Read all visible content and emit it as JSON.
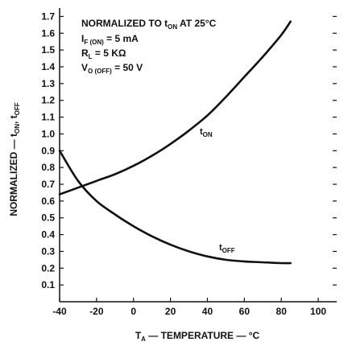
{
  "chart_data": {
    "type": "line",
    "xlabel": {
      "main": "T",
      "sub": "A",
      "rest": " — TEMPERATURE — °C"
    },
    "ylabel": {
      "p1": "NORMALIZED — t",
      "s1": "ON",
      "p2": ", t",
      "s2": "OFF"
    },
    "xlim": [
      -40,
      110
    ],
    "ylim": [
      0,
      1.75
    ],
    "x_ticks": [
      "-40",
      "-20",
      "0",
      "20",
      "40",
      "60",
      "80",
      "100"
    ],
    "y_ticks": [
      "0.1",
      "0.2",
      "0.3",
      "0.4",
      "0.5",
      "0.6",
      "0.7",
      "0.8",
      "0.9",
      "1.0",
      "1.1",
      "1.2",
      "1.3",
      "1.4",
      "1.5",
      "1.6",
      "1.7"
    ],
    "annotations": [
      {
        "parts": [
          {
            "t": "NORMALIZED TO t"
          },
          {
            "t": "ON",
            "sub": true
          },
          {
            "t": " AT 25°C"
          }
        ]
      },
      {
        "parts": [
          {
            "t": "I"
          },
          {
            "t": "F (ON)",
            "sub": true
          },
          {
            "t": " = 5 mA"
          }
        ]
      },
      {
        "parts": [
          {
            "t": "R"
          },
          {
            "t": "L",
            "sub": true
          },
          {
            "t": " = 5 KΩ"
          }
        ]
      },
      {
        "parts": [
          {
            "t": "V"
          },
          {
            "t": "O (OFF)",
            "sub": true
          },
          {
            "t": " = 50 V"
          }
        ]
      }
    ],
    "series": [
      {
        "label_main": "t",
        "label_sub": "ON",
        "x": [
          -40,
          -30,
          -20,
          -10,
          0,
          10,
          20,
          30,
          40,
          50,
          60,
          70,
          80,
          85
        ],
        "y": [
          0.64,
          0.68,
          0.72,
          0.76,
          0.81,
          0.87,
          0.94,
          1.02,
          1.11,
          1.22,
          1.34,
          1.46,
          1.59,
          1.67
        ]
      },
      {
        "label_main": "t",
        "label_sub": "OFF",
        "x": [
          -40,
          -30,
          -20,
          -10,
          0,
          10,
          20,
          30,
          40,
          50,
          60,
          70,
          80,
          85
        ],
        "y": [
          0.9,
          0.72,
          0.6,
          0.52,
          0.45,
          0.39,
          0.34,
          0.3,
          0.27,
          0.25,
          0.24,
          0.235,
          0.23,
          0.23
        ]
      }
    ]
  }
}
